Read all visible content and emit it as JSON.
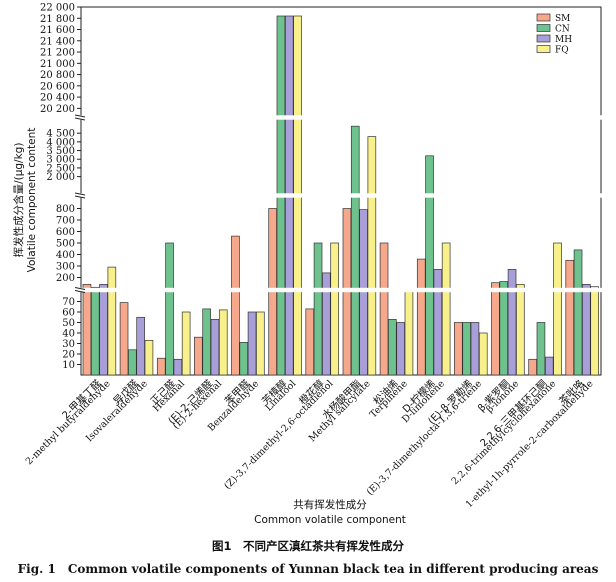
{
  "chart_data": {
    "type": "bar",
    "broken_axis": true,
    "ylabel_cn": "挥发性成分含量/(μg/kg)",
    "ylabel_en": "Volatile component content",
    "xlabel_cn": "共有挥发性成分",
    "xlabel_en": "Common volatile component",
    "series": [
      {
        "name": "SM",
        "color": "#f5a88c",
        "values": [
          140,
          69,
          16,
          36,
          560,
          800,
          63,
          800,
          500,
          360,
          50,
          155,
          15,
          350
        ]
      },
      {
        "name": "CN",
        "color": "#6ec28e",
        "values": [
          115,
          24,
          500,
          63,
          31,
          21840,
          500,
          4900,
          53,
          3200,
          50,
          165,
          50,
          440
        ]
      },
      {
        "name": "MH",
        "color": "#a89fd8",
        "values": [
          140,
          55,
          15,
          53,
          60,
          21840,
          240,
          790,
          50,
          270,
          50,
          270,
          17,
          140
        ]
      },
      {
        "name": "FQ",
        "color": "#f8f08a",
        "values": [
          290,
          33,
          60,
          62,
          60,
          21840,
          500,
          4300,
          100,
          500,
          40,
          140,
          500,
          120
        ]
      }
    ],
    "categories": [
      {
        "cn": "2-甲基丁醛",
        "en": "2-methyl butyraldehyde"
      },
      {
        "cn": "异戊醛",
        "en": "Isovaleraldehyde"
      },
      {
        "cn": "正己醛",
        "en": "Hexanal"
      },
      {
        "cn": "(E)-2-己烯醛",
        "en": "(E)-2-hexenal"
      },
      {
        "cn": "苯甲醛",
        "en": "Benzaldehyde"
      },
      {
        "cn": "芳樟醇",
        "en": "Linalool"
      },
      {
        "cn": "橙花醇",
        "en": "(Z)-3,7-dimethyl-2,6-octadienol"
      },
      {
        "cn": "水杨酸甲酯",
        "en": "Methyl salicylate"
      },
      {
        "cn": "松油烯",
        "en": "Terpinene"
      },
      {
        "cn": "D-柠檬烯",
        "en": "D-limonene"
      },
      {
        "cn": "(E)-β-罗勒烯",
        "en": "(E)-3,7-dimethylocta-1,3,6-triene"
      },
      {
        "cn": "β-紫罗酮",
        "en": "β-ionone"
      },
      {
        "cn": "2,2,6-三甲基环己酮",
        "en": "2,2,6-trimethylcyclohexanone"
      },
      {
        "cn": "茶吡咯",
        "en": "1-ethyl-1h-pyrrole-2-carboxaldehyde"
      }
    ],
    "y_segments": [
      {
        "range": [
          0,
          80
        ],
        "ticks": [
          10,
          20,
          30,
          40,
          50,
          60,
          70
        ]
      },
      {
        "range": [
          100,
          900
        ],
        "ticks": [
          200,
          300,
          400,
          500,
          600,
          700,
          800
        ]
      },
      {
        "range": [
          1000,
          5200
        ],
        "ticks": [
          2000,
          2500,
          3000,
          3500,
          4000,
          4500
        ]
      },
      {
        "range": [
          20100,
          22000
        ],
        "ticks": [
          20200,
          20400,
          20600,
          20800,
          21000,
          21200,
          21400,
          21600,
          21800,
          22000
        ]
      }
    ],
    "legend_position": "top-right"
  },
  "caption_cn": "图1　不同产区滇红茶共有挥发性成分",
  "caption_en": "Fig. 1　Common volatile components of Yunnan black tea in different producing areas"
}
